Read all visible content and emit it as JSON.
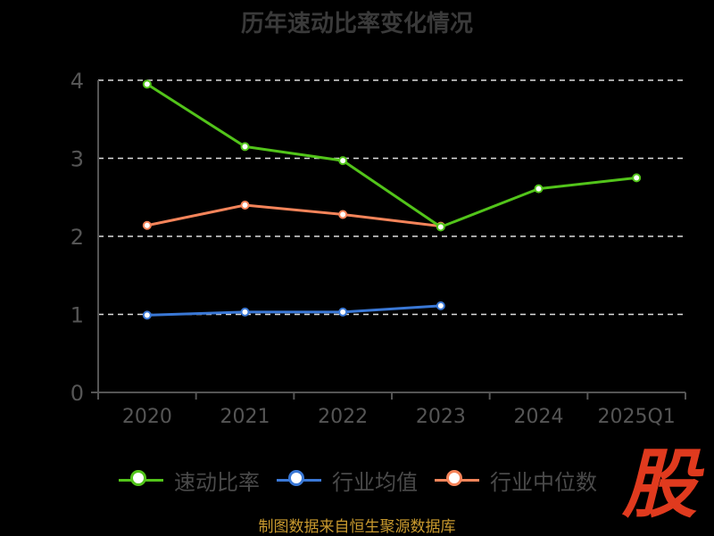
{
  "title": "历年速动比率变化情况",
  "source_note": "制图数据来自恒生聚源数据库",
  "logo_text": "股",
  "colors": {
    "background": "#000000",
    "axis": "#555555",
    "grid": "#dddddd",
    "tick_text": "#555555",
    "logo": "#e03a1e",
    "source": "#c8992e"
  },
  "chart_data": {
    "type": "line",
    "title": "历年速动比率变化情况",
    "categories": [
      "2020",
      "2021",
      "2022",
      "2023",
      "2024",
      "2025Q1"
    ],
    "ylim": [
      0,
      4
    ],
    "yticks": [
      0,
      1,
      2,
      3,
      4
    ],
    "grid": true,
    "legend_position": "bottom",
    "series": [
      {
        "name": "速动比率",
        "color": "#52c41a",
        "values": [
          3.95,
          3.15,
          2.97,
          2.12,
          2.61,
          2.75
        ]
      },
      {
        "name": "行业均值",
        "color": "#3a78d6",
        "values": [
          0.99,
          1.03,
          1.03,
          1.11,
          null,
          null
        ]
      },
      {
        "name": "行业中位数",
        "color": "#f5845a",
        "values": [
          2.14,
          2.4,
          2.28,
          2.13,
          null,
          null
        ]
      }
    ]
  }
}
